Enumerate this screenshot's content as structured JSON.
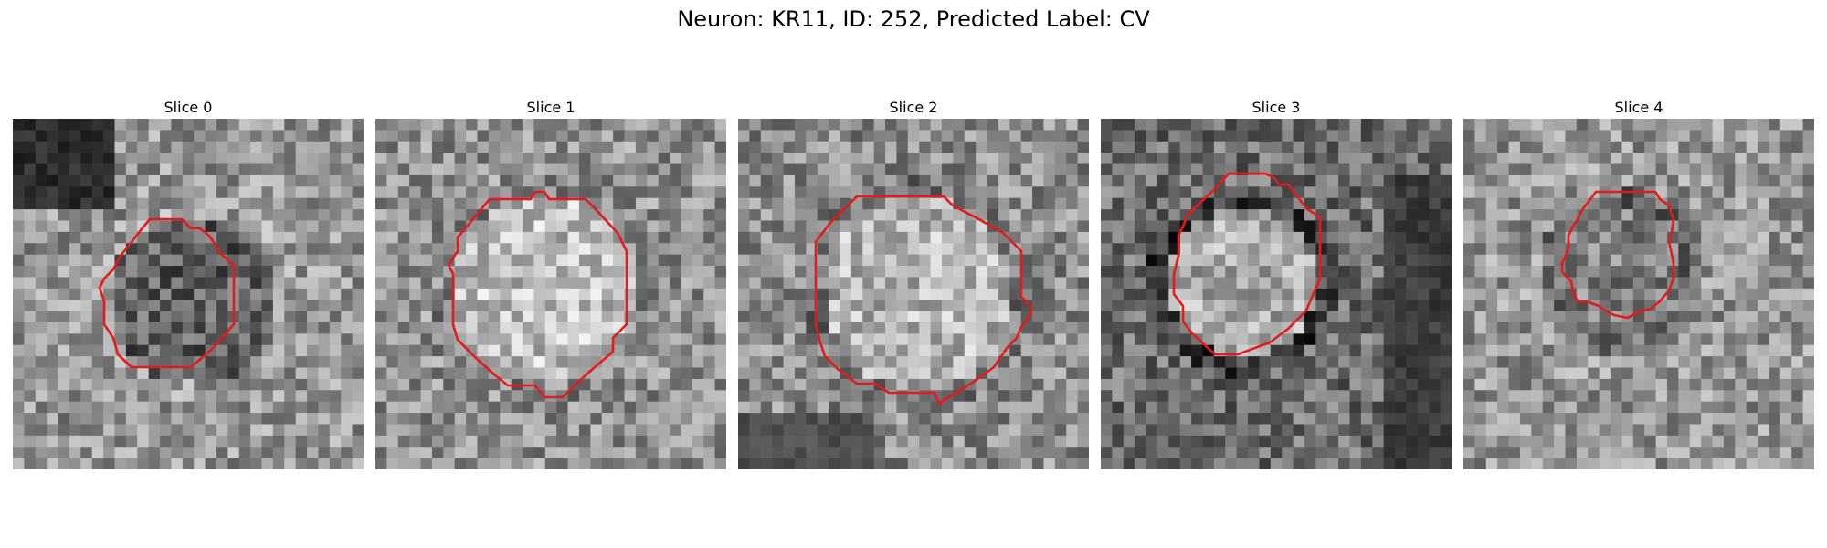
{
  "figure": {
    "title": "Neuron: KR11, ID: 252, Predicted Label: CV",
    "outline_color": "#e41a1c"
  },
  "panels": [
    {
      "title": "Slice 0"
    },
    {
      "title": "Slice 1"
    },
    {
      "title": "Slice 2"
    },
    {
      "title": "Slice 3"
    },
    {
      "title": "Slice 4"
    }
  ]
}
